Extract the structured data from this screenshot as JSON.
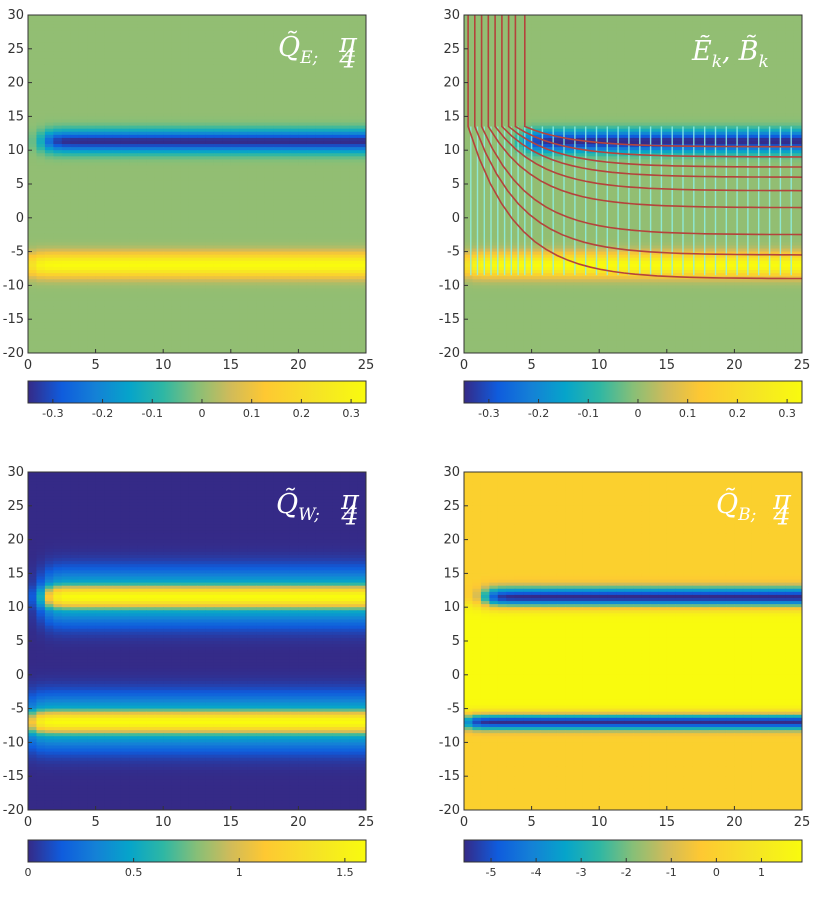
{
  "chart_data": [
    {
      "type": "heatmap",
      "title": "Q̃E;π/4",
      "title_parts": {
        "base": "Q̃",
        "sub": "E;",
        "frac_num": "π",
        "frac_den": "4"
      },
      "xlim": [
        0,
        25
      ],
      "ylim": [
        -20,
        30
      ],
      "xticks": [
        "0",
        "5",
        "10",
        "15",
        "20",
        "25"
      ],
      "yticks": [
        "30",
        "25",
        "20",
        "15",
        "10",
        "5",
        "0",
        "-5",
        "-10",
        "-15",
        "-20"
      ],
      "colorbar": {
        "range": [
          -0.35,
          0.33
        ],
        "ticks": [
          "-0.3",
          "-0.2",
          "-0.1",
          "0",
          "0.1",
          "0.2",
          "0.3"
        ],
        "tick_values": [
          -0.3,
          -0.2,
          -0.1,
          0,
          0.1,
          0.2,
          0.3
        ]
      },
      "background": 0,
      "bands": [
        {
          "y_center": 11.3,
          "y_width": 1.6,
          "value": -0.35,
          "x_start": 1.2
        },
        {
          "y_center": -7.0,
          "y_width": 1.7,
          "value": 0.33,
          "x_start": 0
        }
      ]
    },
    {
      "type": "heatmap",
      "title": "Ẽk, B̃k",
      "title_parts": {
        "e": "Ẽ",
        "e_sub": "k",
        "sep": ",",
        "b": "B̃",
        "b_sub": "k"
      },
      "xlim": [
        0,
        25
      ],
      "ylim": [
        -20,
        30
      ],
      "xticks": [
        "0",
        "5",
        "10",
        "15",
        "20",
        "25"
      ],
      "yticks": [
        "30",
        "25",
        "20",
        "15",
        "10",
        "5",
        "0",
        "-5",
        "-10",
        "-15",
        "-20"
      ],
      "colorbar": {
        "range": [
          -0.35,
          0.33
        ],
        "ticks": [
          "-0.3",
          "-0.2",
          "-0.1",
          "0",
          "0.1",
          "0.2",
          "0.3"
        ],
        "tick_values": [
          -0.3,
          -0.2,
          -0.1,
          0,
          0.1,
          0.2,
          0.3
        ]
      },
      "background": 0,
      "bands": [
        {
          "y_center": 11.3,
          "y_width": 1.6,
          "value": -0.35,
          "x_start": 4.5
        },
        {
          "y_center": -7.0,
          "y_width": 1.7,
          "value": 0.33,
          "x_start": 0
        }
      ],
      "field_lines": {
        "vertical_line_x": [
          0.5,
          1.0,
          1.5,
          2.0,
          2.5,
          3.0,
          3.5,
          4.0,
          4.5,
          5.0,
          5.8,
          6.6,
          7.4,
          8.2,
          9.0,
          9.8,
          10.6,
          11.4,
          12.2,
          13.0,
          13.8,
          14.6,
          15.4,
          16.2,
          17.0,
          17.8,
          18.6,
          19.4,
          20.2,
          21.0,
          21.8,
          22.6,
          23.4,
          24.2
        ],
        "curve_x_start": [
          0.3,
          0.8,
          1.3,
          1.8,
          2.3,
          2.8,
          3.3,
          3.8,
          4.5
        ],
        "curve_y_end": [
          -9.0,
          -5.5,
          -2.5,
          1.5,
          4.0,
          6.0,
          7.5,
          9.0,
          10.5
        ]
      }
    },
    {
      "type": "heatmap",
      "title": "Q̃W;π/4",
      "title_parts": {
        "base": "Q̃",
        "sub": "W;",
        "frac_num": "π",
        "frac_den": "4"
      },
      "xlim": [
        0,
        25
      ],
      "ylim": [
        -20,
        30
      ],
      "xticks": [
        "0",
        "5",
        "10",
        "15",
        "20",
        "25"
      ],
      "yticks": [
        "30",
        "25",
        "20",
        "15",
        "10",
        "5",
        "0",
        "-5",
        "-10",
        "-15",
        "-20"
      ],
      "colorbar": {
        "range": [
          0,
          1.6
        ],
        "ticks": [
          "0",
          "0.5",
          "1",
          "1.5"
        ],
        "tick_values": [
          0,
          0.5,
          1,
          1.5
        ]
      },
      "background": 0,
      "bands": [
        {
          "y_center": 11.5,
          "y_width": 2.0,
          "value": 1.6,
          "x_start": 1.2,
          "halo": 0.6
        },
        {
          "y_center": -7.0,
          "y_width": 2.0,
          "value": 1.6,
          "x_start": 0,
          "halo": 0.6
        }
      ]
    },
    {
      "type": "heatmap",
      "title": "Q̃B;π/4",
      "title_parts": {
        "base": "Q̃",
        "sub": "B;",
        "frac_num": "π",
        "frac_den": "4"
      },
      "xlim": [
        0,
        25
      ],
      "ylim": [
        -20,
        30
      ],
      "xticks": [
        "0",
        "5",
        "10",
        "15",
        "20",
        "25"
      ],
      "yticks": [
        "30",
        "25",
        "20",
        "15",
        "10",
        "5",
        "0",
        "-5",
        "-10",
        "-15",
        "-20"
      ],
      "colorbar": {
        "range": [
          -5.6,
          1.9
        ],
        "ticks": [
          "-5",
          "-4",
          "-3",
          "-2",
          "-1",
          "0",
          "1"
        ],
        "tick_values": [
          -5,
          -4,
          -3,
          -2,
          -1,
          0,
          1
        ]
      },
      "background": 0,
      "inner_region": {
        "y_min": -6,
        "y_max": 10.5,
        "value": 1.9
      },
      "bands": [
        {
          "y_center": 11.5,
          "y_width": 1.5,
          "value": -5.6,
          "x_start": 1.5
        },
        {
          "y_center": -7.0,
          "y_width": 1.2,
          "value": -5.6,
          "x_start": 0
        }
      ]
    }
  ]
}
